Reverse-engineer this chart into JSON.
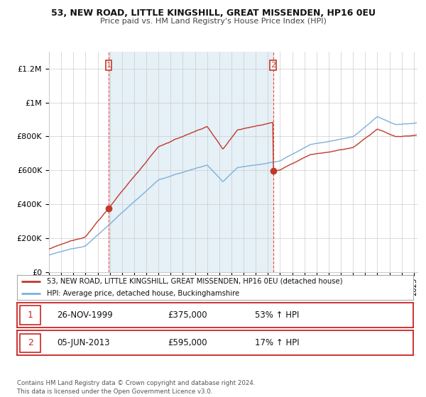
{
  "title1": "53, NEW ROAD, LITTLE KINGSHILL, GREAT MISSENDEN, HP16 0EU",
  "title2": "Price paid vs. HM Land Registry's House Price Index (HPI)",
  "xlim_start": 1995.0,
  "xlim_end": 2025.3,
  "ylim_min": 0,
  "ylim_max": 1300000,
  "yticks": [
    0,
    200000,
    400000,
    600000,
    800000,
    1000000,
    1200000
  ],
  "ytick_labels": [
    "£0",
    "£200K",
    "£400K",
    "£600K",
    "£800K",
    "£1M",
    "£1.2M"
  ],
  "xticks": [
    1995,
    1996,
    1997,
    1998,
    1999,
    2000,
    2001,
    2002,
    2003,
    2004,
    2005,
    2006,
    2007,
    2008,
    2009,
    2010,
    2011,
    2012,
    2013,
    2014,
    2015,
    2016,
    2017,
    2018,
    2019,
    2020,
    2021,
    2022,
    2023,
    2024,
    2025
  ],
  "hpi_color": "#7fb0d8",
  "sale_color": "#c0392b",
  "vline_color": "#e74c3c",
  "fill_color": "#daeaf5",
  "purchase1_x": 1999.91,
  "purchase1_y": 375000,
  "purchase2_x": 2013.43,
  "purchase2_y": 595000,
  "legend_line1": "53, NEW ROAD, LITTLE KINGSHILL, GREAT MISSENDEN, HP16 0EU (detached house)",
  "legend_line2": "HPI: Average price, detached house, Buckinghamshire",
  "table_row1_num": "1",
  "table_row1_date": "26-NOV-1999",
  "table_row1_price": "£375,000",
  "table_row1_hpi": "53% ↑ HPI",
  "table_row2_num": "2",
  "table_row2_date": "05-JUN-2013",
  "table_row2_price": "£595,000",
  "table_row2_hpi": "17% ↑ HPI",
  "footnote": "Contains HM Land Registry data © Crown copyright and database right 2024.\nThis data is licensed under the Open Government Licence v3.0.",
  "bg_color": "#ffffff",
  "grid_color": "#cccccc"
}
